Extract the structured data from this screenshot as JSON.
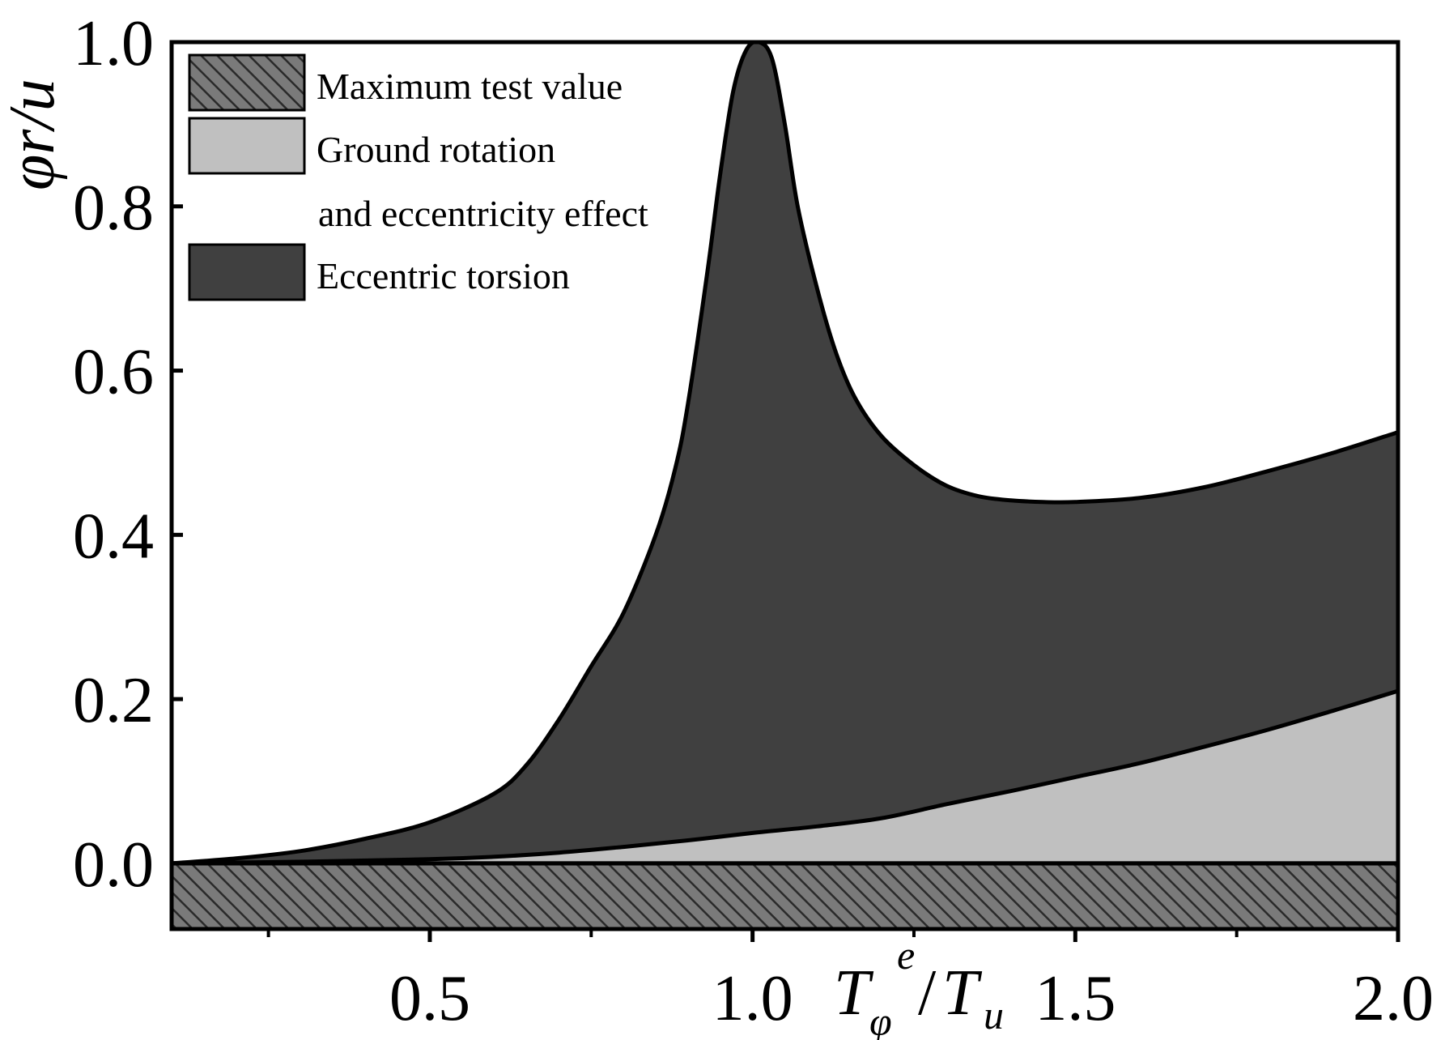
{
  "chart_data": {
    "type": "area",
    "title": "",
    "xlabel": "Tφe/Tu",
    "xlabel_parts": {
      "base": "T",
      "sub": "φ",
      "sup": "e",
      "sep": "/",
      "base2": "T",
      "sub2": "u"
    },
    "ylabel": "φr/u",
    "xlim": [
      0.1,
      2.0
    ],
    "ylim": [
      -0.08,
      1.0
    ],
    "x_ticks": [
      0.5,
      1.0,
      1.5,
      2.0
    ],
    "x_tick_labels": [
      "0.5",
      "1.0",
      "1.5",
      "2.0"
    ],
    "x_minor_ticks": [
      0.25,
      0.75,
      1.25,
      1.75
    ],
    "y_ticks": [
      0.0,
      0.2,
      0.4,
      0.6,
      0.8,
      1.0
    ],
    "y_tick_labels": [
      "0.0",
      "0.2",
      "0.4",
      "0.6",
      "0.8",
      "1.0"
    ],
    "grid": false,
    "legend_position": "top-left",
    "legend": [
      {
        "label": "Maximum test value",
        "style": "hatched"
      },
      {
        "label": "Ground rotation",
        "label2": "and eccentricity effect",
        "style": "light"
      },
      {
        "label": "Eccentric torsion",
        "style": "dark"
      }
    ],
    "colors": {
      "eccentric_torsion": "#404040",
      "ground_rotation": "#c0c0c0",
      "maximum_test_value": "#7a7a7a",
      "outline": "#000000"
    },
    "series": [
      {
        "name": "Maximum test value",
        "kind": "band",
        "y_top": 0.0,
        "y_bottom": -0.08
      },
      {
        "name": "Ground rotation and eccentricity effect",
        "kind": "area",
        "x": [
          0.1,
          0.3,
          0.5,
          0.6,
          0.7,
          0.8,
          0.9,
          1.0,
          1.1,
          1.2,
          1.3,
          1.4,
          1.5,
          1.6,
          1.7,
          1.8,
          1.9,
          2.0
        ],
        "y": [
          0.0,
          0.002,
          0.005,
          0.008,
          0.013,
          0.02,
          0.028,
          0.037,
          0.045,
          0.055,
          0.072,
          0.088,
          0.105,
          0.122,
          0.142,
          0.163,
          0.186,
          0.21
        ]
      },
      {
        "name": "Eccentric torsion",
        "kind": "area",
        "x": [
          0.1,
          0.2,
          0.3,
          0.4,
          0.5,
          0.6,
          0.65,
          0.7,
          0.75,
          0.8,
          0.85,
          0.88,
          0.9,
          0.93,
          0.95,
          0.97,
          0.99,
          1.01,
          1.03,
          1.05,
          1.07,
          1.1,
          1.13,
          1.16,
          1.2,
          1.25,
          1.3,
          1.35,
          1.4,
          1.45,
          1.5,
          1.6,
          1.7,
          1.8,
          1.9,
          2.0
        ],
        "y": [
          0.0,
          0.006,
          0.015,
          0.03,
          0.05,
          0.085,
          0.12,
          0.175,
          0.24,
          0.305,
          0.4,
          0.48,
          0.56,
          0.72,
          0.84,
          0.94,
          0.99,
          1.0,
          0.98,
          0.9,
          0.8,
          0.7,
          0.62,
          0.565,
          0.52,
          0.485,
          0.46,
          0.447,
          0.442,
          0.44,
          0.44,
          0.445,
          0.458,
          0.478,
          0.5,
          0.525
        ]
      }
    ]
  }
}
